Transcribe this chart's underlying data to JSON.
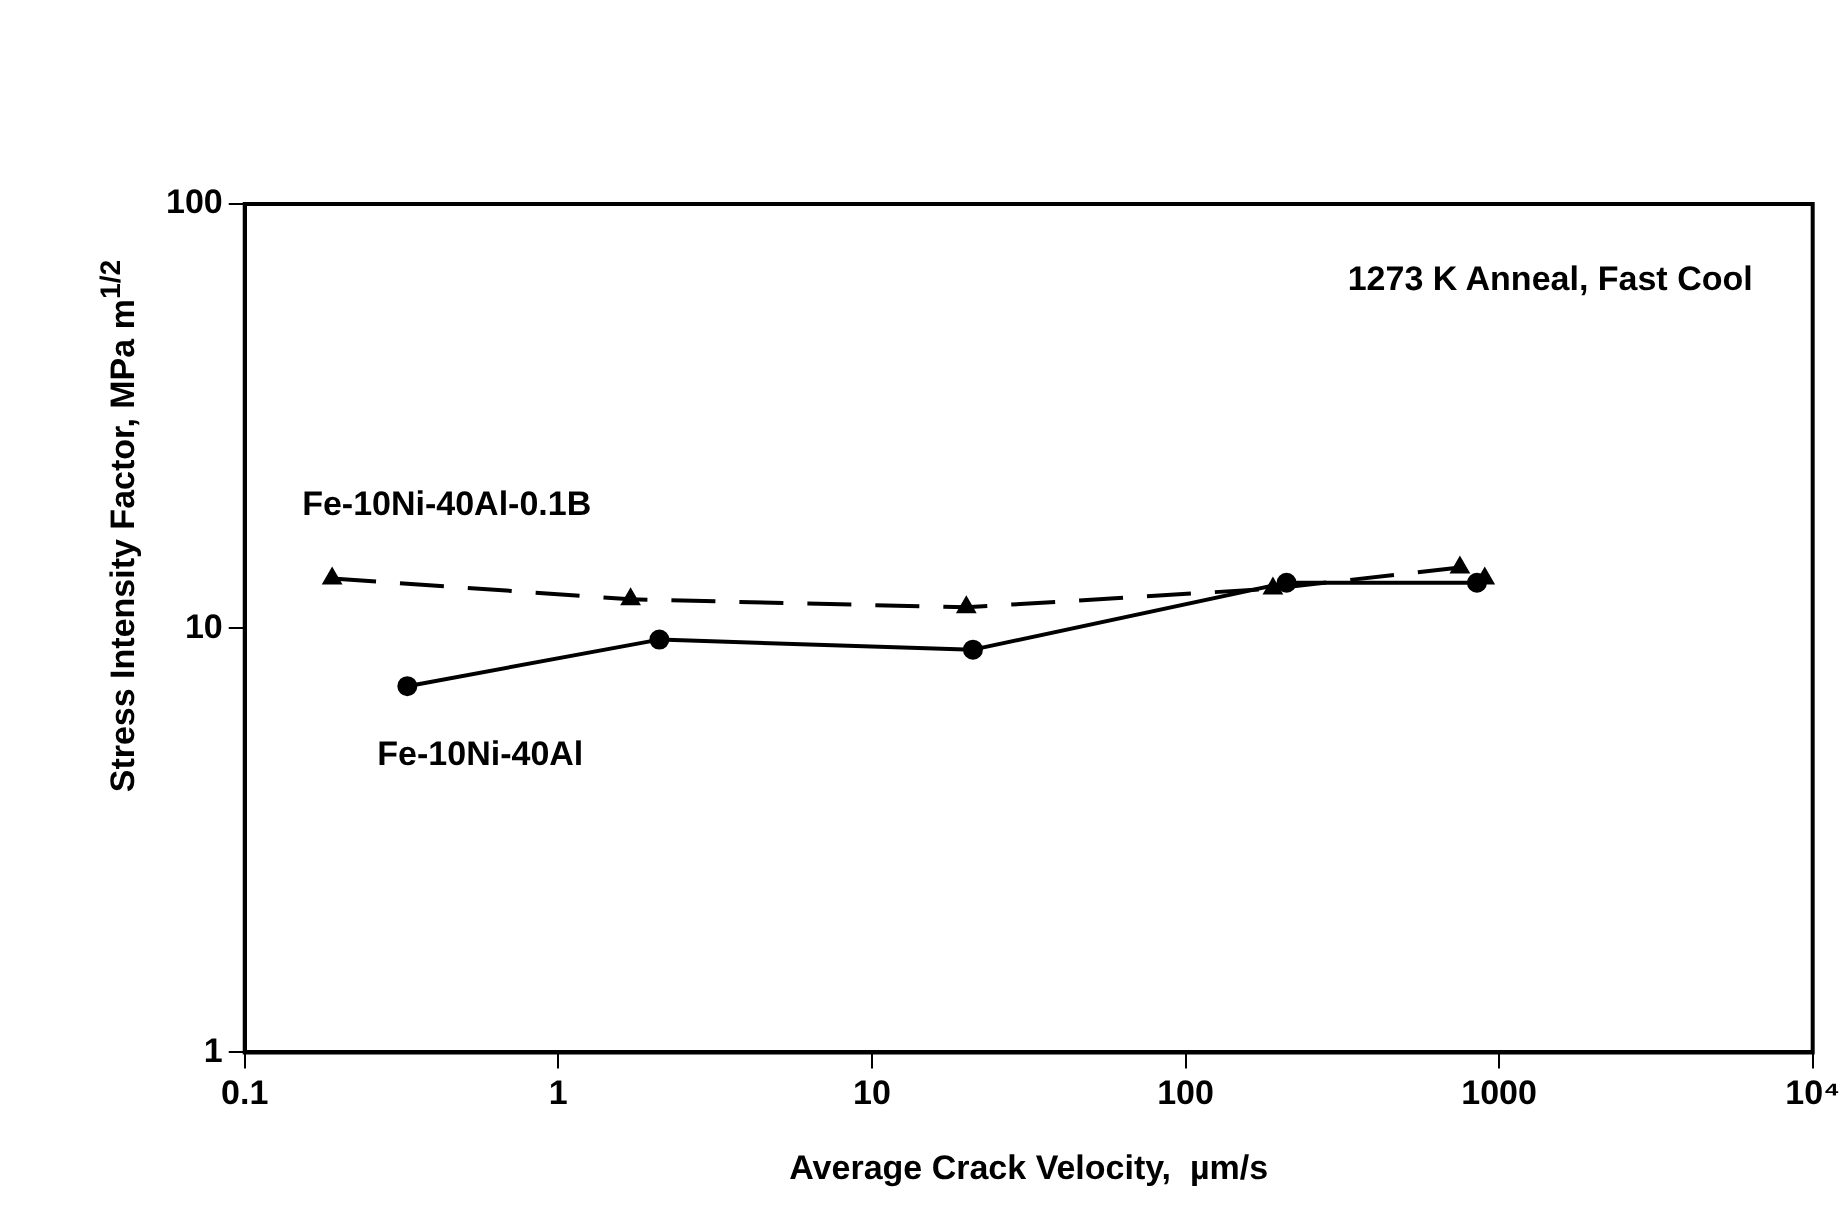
{
  "chart_data": {
    "type": "line",
    "xlabel": "Average Crack Velocity,  µm/s",
    "ylabel": "Stress Intensity Factor, MPa m$^{1/2}$",
    "log": "xy",
    "xlim": [
      0.1,
      10000
    ],
    "ylim": [
      1,
      100
    ],
    "xticks": [
      0.1,
      1,
      10,
      100,
      1000,
      {
        "value": 10000,
        "label": "10⁴"
      }
    ],
    "yticks": [
      1,
      10,
      100
    ],
    "grid": false,
    "legend": false,
    "annotations": [
      "1273 K Anneal, Fast Cool"
    ],
    "series": [
      {
        "name": "Fe-10Ni-40Al-0.1B",
        "color": "#000000",
        "marker": "triangle",
        "line_style": "dashed",
        "x": [
          0.19,
          1.7,
          20,
          190,
          750,
          900
        ],
        "values": [
          13.1,
          11.7,
          11.2,
          12.4,
          13.9,
          13.1
        ]
      },
      {
        "name": "Fe-10Ni-40Al",
        "color": "#000000",
        "marker": "circle",
        "line_style": "solid",
        "x": [
          0.33,
          2.1,
          21,
          210,
          850
        ],
        "values": [
          7.3,
          9.4,
          8.9,
          12.8,
          12.8
        ]
      }
    ]
  }
}
